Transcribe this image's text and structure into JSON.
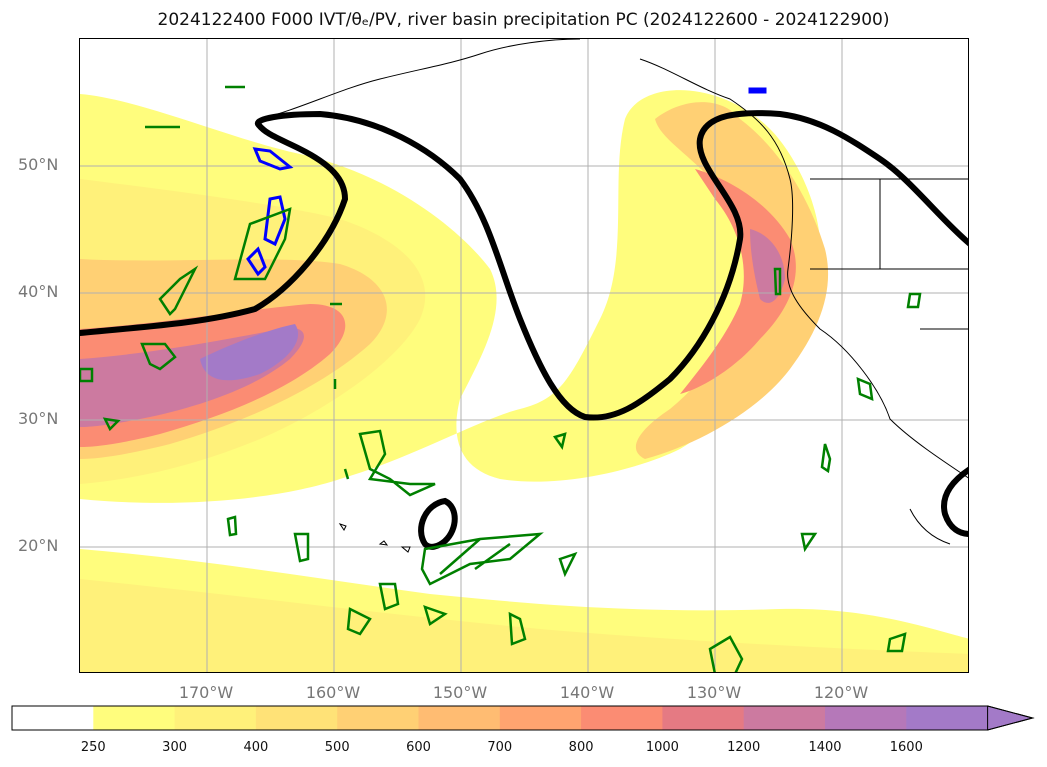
{
  "title": "2024122400 F000 IVT/θₑ/PV, river basin precipitation PC (2024122600 - 2024122900)",
  "map": {
    "lat_labels": [
      "50°N",
      "40°N",
      "30°N",
      "20°N"
    ],
    "lon_labels": [
      "170°W",
      "160°W",
      "150°W",
      "140°W",
      "130°W",
      "120°W"
    ],
    "extent": {
      "lon": [
        -180,
        -110
      ],
      "lat": [
        10,
        60
      ]
    }
  },
  "colorbar": {
    "levels": [
      "250",
      "300",
      "400",
      "500",
      "600",
      "700",
      "800",
      "1000",
      "1200",
      "1400",
      "1600"
    ],
    "colors": [
      "#ffffff",
      "#fffd7d",
      "#fff17a",
      "#ffe277",
      "#ffd074",
      "#ffbc72",
      "#ffa470",
      "#fb8c73",
      "#e57a83",
      "#cc7aa0",
      "#b578b9",
      "#a37ac8"
    ],
    "extend": "max"
  },
  "colors": {
    "theta_e_contour": "#000000",
    "pv_contour": "#0000ff",
    "precip_contour": "#008000",
    "coastline": "#000000"
  }
}
